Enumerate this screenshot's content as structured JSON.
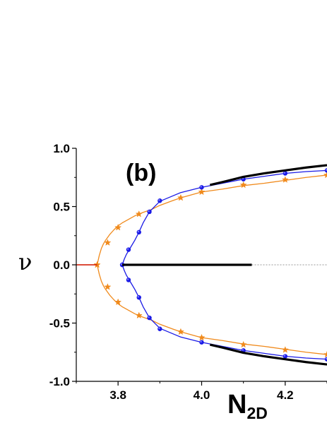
{
  "chart_data": {
    "type": "line",
    "panel_label": "(b)",
    "ylabel": "ν",
    "xlabel_main": "N",
    "xlabel_sub": "2D",
    "xlim": [
      3.7,
      4.3
    ],
    "ylim": [
      -1.0,
      1.0
    ],
    "x_ticks": [
      3.8,
      4.0,
      4.2
    ],
    "x_tick_labels": [
      "3.8",
      "4.0",
      "4.2"
    ],
    "y_ticks": [
      1.0,
      0.5,
      0.0,
      -0.5,
      -1.0
    ],
    "y_tick_labels": [
      "1.0",
      "0.5",
      "0.0",
      "-0.5",
      "-1.0"
    ],
    "grid": false,
    "colors": {
      "orange": "#f08a1c",
      "blue": "#1a1ae6",
      "black": "#000000",
      "gray": "#777777",
      "red": "#cc0000",
      "marker_inner": "#7f7fff"
    },
    "series": [
      {
        "color_key": "orange",
        "marker": "star",
        "style": "solid",
        "mirror": true,
        "x": [
          3.7,
          3.75,
          3.755,
          3.76,
          3.765,
          3.77,
          3.78,
          3.79,
          3.8,
          3.81,
          3.82,
          3.84,
          3.86,
          3.88,
          3.9,
          3.93,
          3.95,
          4.0,
          4.05,
          4.1,
          4.15,
          4.2,
          4.25,
          4.3
        ],
        "y": [
          0.0,
          0.0,
          0.08,
          0.14,
          0.18,
          0.21,
          0.26,
          0.3,
          0.335,
          0.36,
          0.38,
          0.42,
          0.45,
          0.475,
          0.51,
          0.55,
          0.575,
          0.625,
          0.65,
          0.68,
          0.7,
          0.725,
          0.75,
          0.77
        ],
        "marker_x": [
          3.75,
          3.775,
          3.8,
          3.85,
          3.95,
          4.0,
          4.1,
          4.2,
          4.3
        ],
        "marker_y": [
          0.0,
          0.19,
          0.32,
          0.435,
          0.575,
          0.625,
          0.685,
          0.73,
          0.77
        ]
      },
      {
        "color_key": "blue",
        "marker": "circle",
        "style": "solid",
        "mirror": true,
        "x": [
          3.81,
          3.815,
          3.82,
          3.825,
          3.83,
          3.84,
          3.85,
          3.86,
          3.875,
          3.9,
          3.95,
          4.0,
          4.05,
          4.1,
          4.15,
          4.2,
          4.25,
          4.3
        ],
        "y": [
          0.0,
          0.05,
          0.09,
          0.12,
          0.15,
          0.21,
          0.28,
          0.36,
          0.455,
          0.545,
          0.62,
          0.665,
          0.7,
          0.735,
          0.76,
          0.785,
          0.8,
          0.81
        ],
        "marker_x": [
          3.81,
          3.825,
          3.85,
          3.875,
          3.9,
          4.0,
          4.1,
          4.2,
          4.3
        ],
        "marker_y": [
          0.0,
          0.13,
          0.28,
          0.455,
          0.55,
          0.665,
          0.735,
          0.785,
          0.81
        ]
      },
      {
        "color_key": "black",
        "marker": "none",
        "style": "thick",
        "mirror": true,
        "x": [
          4.02,
          4.05,
          4.1,
          4.15,
          4.2,
          4.25,
          4.3
        ],
        "y": [
          0.685,
          0.71,
          0.755,
          0.785,
          0.81,
          0.835,
          0.855
        ]
      },
      {
        "color_key": "black",
        "marker": "none",
        "style": "thick",
        "mirror": false,
        "x": [
          3.81,
          4.12
        ],
        "y": [
          0.0,
          0.0
        ]
      },
      {
        "color_key": "gray",
        "marker": "none",
        "style": "dashed",
        "mirror": false,
        "x": [
          4.12,
          4.3
        ],
        "y": [
          0.0,
          0.0
        ]
      },
      {
        "color_key": "red",
        "marker": "none",
        "style": "thin",
        "mirror": false,
        "x": [
          3.7,
          3.75
        ],
        "y": [
          0.0,
          0.0
        ]
      }
    ]
  }
}
